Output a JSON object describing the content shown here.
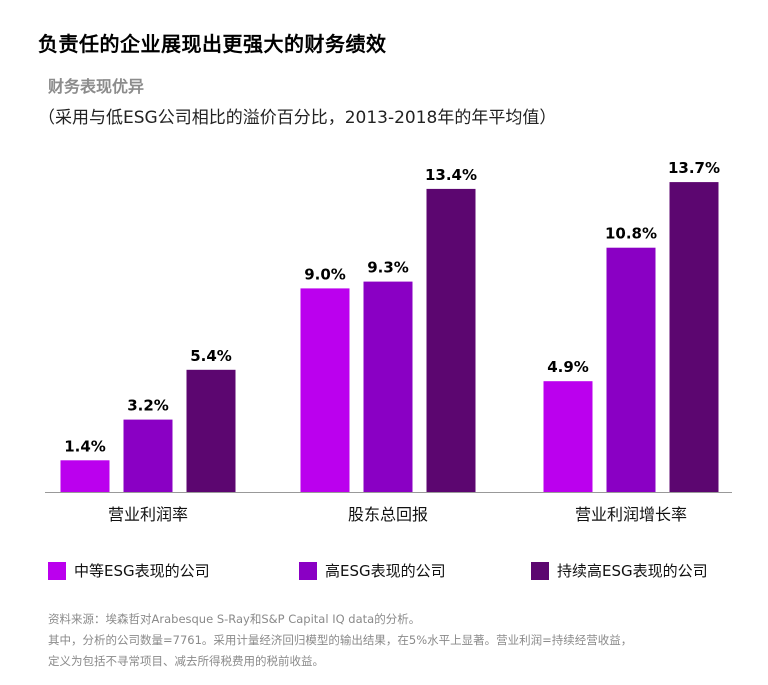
{
  "header": {
    "title": "负责任的企业展现出更强大的财务绩效",
    "subtitle": "财务表现优异",
    "subtitle2": "（采用与低ESG公司相比的溢价百分比，2013-2018年的年平均值）"
  },
  "colors": {
    "series_1": "#bb00ee",
    "series_2": "#8a00c4",
    "series_3": "#5c0670"
  },
  "chart_data": {
    "type": "bar",
    "title": "财务表现优异",
    "categories": [
      "营业利润率",
      "股东总回报",
      "营业利润增长率"
    ],
    "series": [
      {
        "name": "中等ESG表现的公司",
        "values": [
          1.4,
          9.0,
          4.9
        ],
        "labels": [
          "1.4%",
          "9.0%",
          "4.9%"
        ]
      },
      {
        "name": "高ESG表现的公司",
        "values": [
          3.2,
          9.3,
          10.8
        ],
        "labels": [
          "3.2%",
          "9.3%",
          "10.8%"
        ]
      },
      {
        "name": "持续高ESG表现的公司",
        "values": [
          5.4,
          13.4,
          13.7
        ],
        "labels": [
          "5.4%",
          "13.4%",
          "13.7%"
        ]
      }
    ],
    "unit": "%",
    "ylim": [
      0,
      14.5
    ],
    "grid": false,
    "legend": "bottom"
  },
  "legend": {
    "items": [
      {
        "label": "中等ESG表现的公司"
      },
      {
        "label": "高ESG表现的公司"
      },
      {
        "label": "持续高ESG表现的公司"
      }
    ]
  },
  "notes": {
    "line1": "资料来源：埃森哲对Arabesque S-Ray和S&P Capital IQ data的分析。",
    "line2": "其中，分析的公司数量=7761。采用计量经济回归模型的输出结果，在5%水平上显著。营业利润=持续经营收益，",
    "line3": "定义为包括不寻常项目、减去所得税费用的税前收益。"
  }
}
